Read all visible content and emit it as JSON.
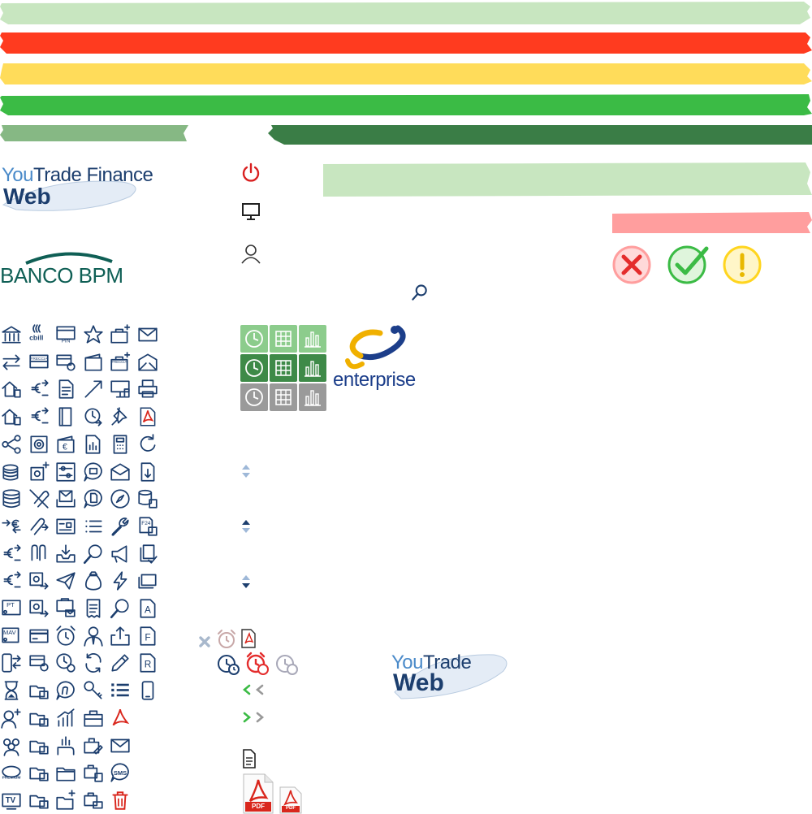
{
  "colors": {
    "light_green": "#c8e6c0",
    "red": "#ff3b1f",
    "yellow": "#ffdc5a",
    "green": "#3bbb45",
    "mid_green": "#86b884",
    "dark_green": "#3a7d46",
    "pale_red": "#ff9e9e",
    "navy": "#1c3e6e",
    "light_blue": "#4a8ac9",
    "pdf_red": "#d9261c",
    "power_red": "#d92020"
  },
  "logos": {
    "youtrade_finance": {
      "part1": "You",
      "part2": "Trade",
      "part3": "Finance",
      "line2": "Web"
    },
    "banco_bpm": {
      "text": "BANCO BPM"
    },
    "enterprise": {
      "text": "enterprise"
    },
    "youtrade_web": {
      "part1": "You",
      "part2": "Trade",
      "line2": "Web"
    }
  },
  "icon_labels": {
    "cbill": "cbill",
    "pin": "PIN",
    "freccia_1": "FRECCIA",
    "freccia_2": "FRECCIA",
    "pt": "PT",
    "mav": "MAV",
    "premium": "PREMIUM",
    "tv": "TV",
    "sms": "SMS",
    "euro": "€",
    "letter_a": "A",
    "letter_f": "F",
    "letter_r": "R",
    "f24": "F24",
    "pdf_large": "PDF",
    "pdf_small": "PDF"
  },
  "icons_grid": [
    [
      "bank-icon",
      "cbill-icon",
      "pin-card-icon",
      "star-icon",
      "briefcase-plus-icon",
      "mail-icon"
    ],
    [
      "transfer-arrows-icon",
      "freccia-icon",
      "card-settings-icon",
      "wallet-icon",
      "briefcase-freccia-icon",
      "mail-open-icon"
    ],
    [
      "home-transfer-icon",
      "euro-transfer-icon",
      "document-icon",
      "trend-up-icon",
      "presentation-icon",
      "printer-icon"
    ],
    [
      "home-docs-icon",
      "euro-doc-icon",
      "folder-icon",
      "clock-arrow-icon",
      "pin-icon",
      "pdf-icon"
    ],
    [
      "share-icon",
      "safe-icon",
      "euro-wallet-icon",
      "document-chart-icon",
      "calculator-icon",
      "refresh-icon"
    ],
    [
      "coins-stack-icon",
      "safe-plus-icon",
      "sliders-icon",
      "chat-wallet-icon",
      "envelope-icon",
      "download-doc-icon"
    ],
    [
      "database-icon",
      "paperclip-cross-icon",
      "inbox-mail-icon",
      "chat-doc-icon",
      "compass-icon",
      "database-docs-icon"
    ],
    [
      "euro-arrows-icon",
      "paperclip-arrow-icon",
      "id-card-icon",
      "list-icon",
      "wrench-icon",
      "f24-icon"
    ],
    [
      "euro-hourglass-icon",
      "paperclips-icon",
      "inbox-download-icon",
      "magnifier-icon",
      "megaphone-icon",
      "docs-check-icon"
    ],
    [
      "euro-refresh-icon",
      "safe-doc-icon",
      "paper-plane-icon",
      "money-bag-icon",
      "lightning-icon",
      "cards-icon"
    ],
    [
      "pt-card-icon",
      "safe-arrow-icon",
      "presentation-mail-icon",
      "receipt-icon",
      "search-icon",
      "letter-a-icon"
    ],
    [
      "mav-card-icon",
      "credit-card-icon",
      "alarm-clock-icon",
      "user-tie-icon",
      "upload-icon",
      "letter-f-icon"
    ],
    [
      "phone-transfer-icon",
      "card-transfer-icon",
      "clock-settings-icon",
      "sync-icon",
      "pencil-icon",
      "letter-r-icon"
    ],
    [
      "hourglass-icon",
      "folder-transfer-icon",
      "n-circle-icon",
      "key-icon",
      "list-lines-icon",
      "smartphone-icon"
    ],
    [
      "user-plus-icon",
      "folder-refresh-icon",
      "bar-chart-icon",
      "briefcase-icon",
      "acrobat-icon",
      ""
    ],
    [
      "users-icon",
      "folder-hourglass-icon",
      "hand-chart-icon",
      "briefcase-pen-icon",
      "mail-outline-icon",
      ""
    ],
    [
      "premium-icon",
      "folder-docs-icon",
      "folder-open-icon",
      "briefcase-docs-icon",
      "sms-icon",
      ""
    ],
    [
      "tv-icon",
      "folder-card-icon",
      "folder-plus-icon",
      "briefcase-card-icon",
      "trash-icon",
      ""
    ]
  ],
  "tiles": [
    {
      "color": "#8ccc8c"
    },
    {
      "color": "#3e8a48"
    },
    {
      "color": "#9a9a9a"
    }
  ]
}
